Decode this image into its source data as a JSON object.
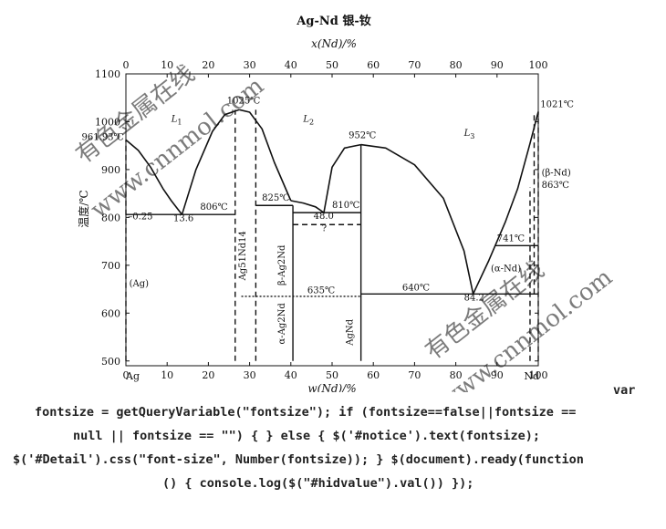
{
  "chart_data": {
    "type": "line",
    "title": "Ag-Nd   银-钕",
    "top_axis_label": "x(Nd)/%",
    "top_ticks": [
      "0",
      "10",
      "20",
      "30",
      "40",
      "50",
      "60",
      "70",
      "80",
      "90",
      "100"
    ],
    "xlabel": "w(Nd)/%",
    "x_ticks": [
      "0",
      "10",
      "20",
      "30",
      "40",
      "50",
      "60",
      "70",
      "80",
      "90",
      "100"
    ],
    "ylabel": "温度/℃",
    "y_ticks": [
      "500",
      "600",
      "700",
      "800",
      "900",
      "1000",
      "1100"
    ],
    "xlim": [
      0,
      100
    ],
    "ylim": [
      490,
      1100
    ],
    "end_labels": {
      "left": "Ag",
      "right": "Nd"
    },
    "liquidus": [
      {
        "name": "L1-left",
        "x": [
          0,
          3,
          6,
          9,
          11,
          13.6
        ],
        "y": [
          961.93,
          940,
          905,
          860,
          835,
          806
        ]
      },
      {
        "name": "L1-right",
        "x": [
          13.6,
          17,
          21,
          24,
          27.5
        ],
        "y": [
          806,
          900,
          980,
          1015,
          1025
        ]
      },
      {
        "name": "Ag51Nd14-right",
        "x": [
          27.5,
          30,
          33,
          36,
          40
        ],
        "y": [
          1025,
          1020,
          985,
          915,
          835
        ]
      },
      {
        "name": "L2-left",
        "x": [
          40,
          43,
          46,
          48
        ],
        "y": [
          835,
          830,
          822,
          810
        ]
      },
      {
        "name": "AgNd-left",
        "x": [
          48,
          50,
          53,
          57
        ],
        "y": [
          810,
          905,
          945,
          952
        ]
      },
      {
        "name": "AgNd-right",
        "x": [
          57,
          63,
          70,
          77,
          82,
          84.2
        ],
        "y": [
          952,
          945,
          910,
          840,
          730,
          640
        ]
      },
      {
        "name": "Nd-liquidus",
        "x": [
          84.2,
          88,
          92,
          95,
          98,
          100
        ],
        "y": [
          640,
          710,
          790,
          860,
          955,
          1021
        ]
      }
    ],
    "horizontals": [
      {
        "x": [
          0,
          26.5
        ],
        "y": 806
      },
      {
        "x": [
          31.5,
          40.5
        ],
        "y": 825
      },
      {
        "x": [
          40.5,
          57
        ],
        "y": 810
      },
      {
        "x": [
          40.5,
          57
        ],
        "y": 785,
        "style": "dashed"
      },
      {
        "x": [
          28,
          57
        ],
        "y": 635,
        "style": "dotted"
      },
      {
        "x": [
          57,
          100
        ],
        "y": 640
      },
      {
        "x": [
          89.5,
          100
        ],
        "y": 741
      }
    ],
    "verticals": [
      {
        "x": 26.5,
        "y": [
          500,
          1025
        ],
        "style": "dashed"
      },
      {
        "x": 31.5,
        "y": [
          500,
          1025
        ],
        "style": "dashed"
      },
      {
        "x": 40.5,
        "y": [
          500,
          825
        ]
      },
      {
        "x": 57,
        "y": [
          500,
          952
        ]
      },
      {
        "x": 0,
        "y": [
          500,
          961.93
        ],
        "style": "dashed"
      },
      {
        "x": 100,
        "y": [
          500,
          1021
        ],
        "style": "dashed"
      },
      {
        "x": 98,
        "y": [
          500,
          863
        ],
        "style": "dashed"
      },
      {
        "x": 99,
        "y": [
          640,
          1021
        ],
        "style": "dashed"
      }
    ],
    "annotations": [
      {
        "text": "961.93℃",
        "x": -0.5,
        "y": 962,
        "anchor": "end"
      },
      {
        "text": "1025℃",
        "x": 24.5,
        "y": 1038,
        "anchor": "start"
      },
      {
        "text": "952℃",
        "x": 54,
        "y": 966,
        "anchor": "start"
      },
      {
        "text": "1021℃",
        "x": 100.5,
        "y": 1030,
        "anchor": "start"
      },
      {
        "text": "806℃",
        "x": 18,
        "y": 816,
        "anchor": "start"
      },
      {
        "text": "825℃",
        "x": 33,
        "y": 835,
        "anchor": "start"
      },
      {
        "text": "810℃",
        "x": 50,
        "y": 820,
        "anchor": "start"
      },
      {
        "text": "741℃",
        "x": 90,
        "y": 750,
        "anchor": "start"
      },
      {
        "text": "863℃",
        "x": 100.8,
        "y": 862,
        "anchor": "start"
      },
      {
        "text": "635℃",
        "x": 44,
        "y": 642,
        "anchor": "start"
      },
      {
        "text": "640℃",
        "x": 67,
        "y": 647,
        "anchor": "start"
      },
      {
        "text": "–0.25",
        "x": 0.5,
        "y": 796,
        "anchor": "start"
      },
      {
        "text": "13.6",
        "x": 11.5,
        "y": 792,
        "anchor": "start"
      },
      {
        "text": "48.0",
        "x": 45.5,
        "y": 797,
        "anchor": "start"
      },
      {
        "text": "84.2",
        "x": 82,
        "y": 626,
        "anchor": "start"
      },
      {
        "text": "?",
        "x": 47.5,
        "y": 771,
        "anchor": "start"
      },
      {
        "text": "L1",
        "x": 11,
        "y": 1000,
        "anchor": "start",
        "sub": true
      },
      {
        "text": "L2",
        "x": 43,
        "y": 1000,
        "anchor": "start",
        "sub": true
      },
      {
        "text": "L3",
        "x": 82,
        "y": 970,
        "anchor": "start",
        "sub": true
      },
      {
        "text": "(β-Nd)",
        "x": 100.8,
        "y": 887,
        "anchor": "start"
      },
      {
        "text": "(α-Nd)",
        "x": 88.5,
        "y": 687,
        "anchor": "start"
      },
      {
        "text": "(Ag)",
        "x": 0.8,
        "y": 656,
        "anchor": "start"
      }
    ],
    "vertical_labels": [
      {
        "text": "Ag51Nd14",
        "x": 29,
        "y": 720
      },
      {
        "text": "β-Ag2Nd",
        "x": 38.5,
        "y": 700
      },
      {
        "text": "α-Ag2Nd",
        "x": 38.5,
        "y": 578
      },
      {
        "text": "AgNd",
        "x": 55,
        "y": 560
      }
    ]
  },
  "watermarks": [
    "有色金属在线",
    "www.cnnmol.com"
  ],
  "code_text": {
    "line1": "var",
    "line2": "fontsize = getQueryVariable(\"fontsize\"); if (fontsize==false||fontsize ==",
    "line3": "null || fontsize == \"\") { } else { $('#notice').text(fontsize);",
    "line4": "$('#Detail').css(\"font-size\", Number(fontsize)); } $(document).ready(function",
    "line5": "() { console.log($(\"#hidvalue\").val()) });"
  }
}
